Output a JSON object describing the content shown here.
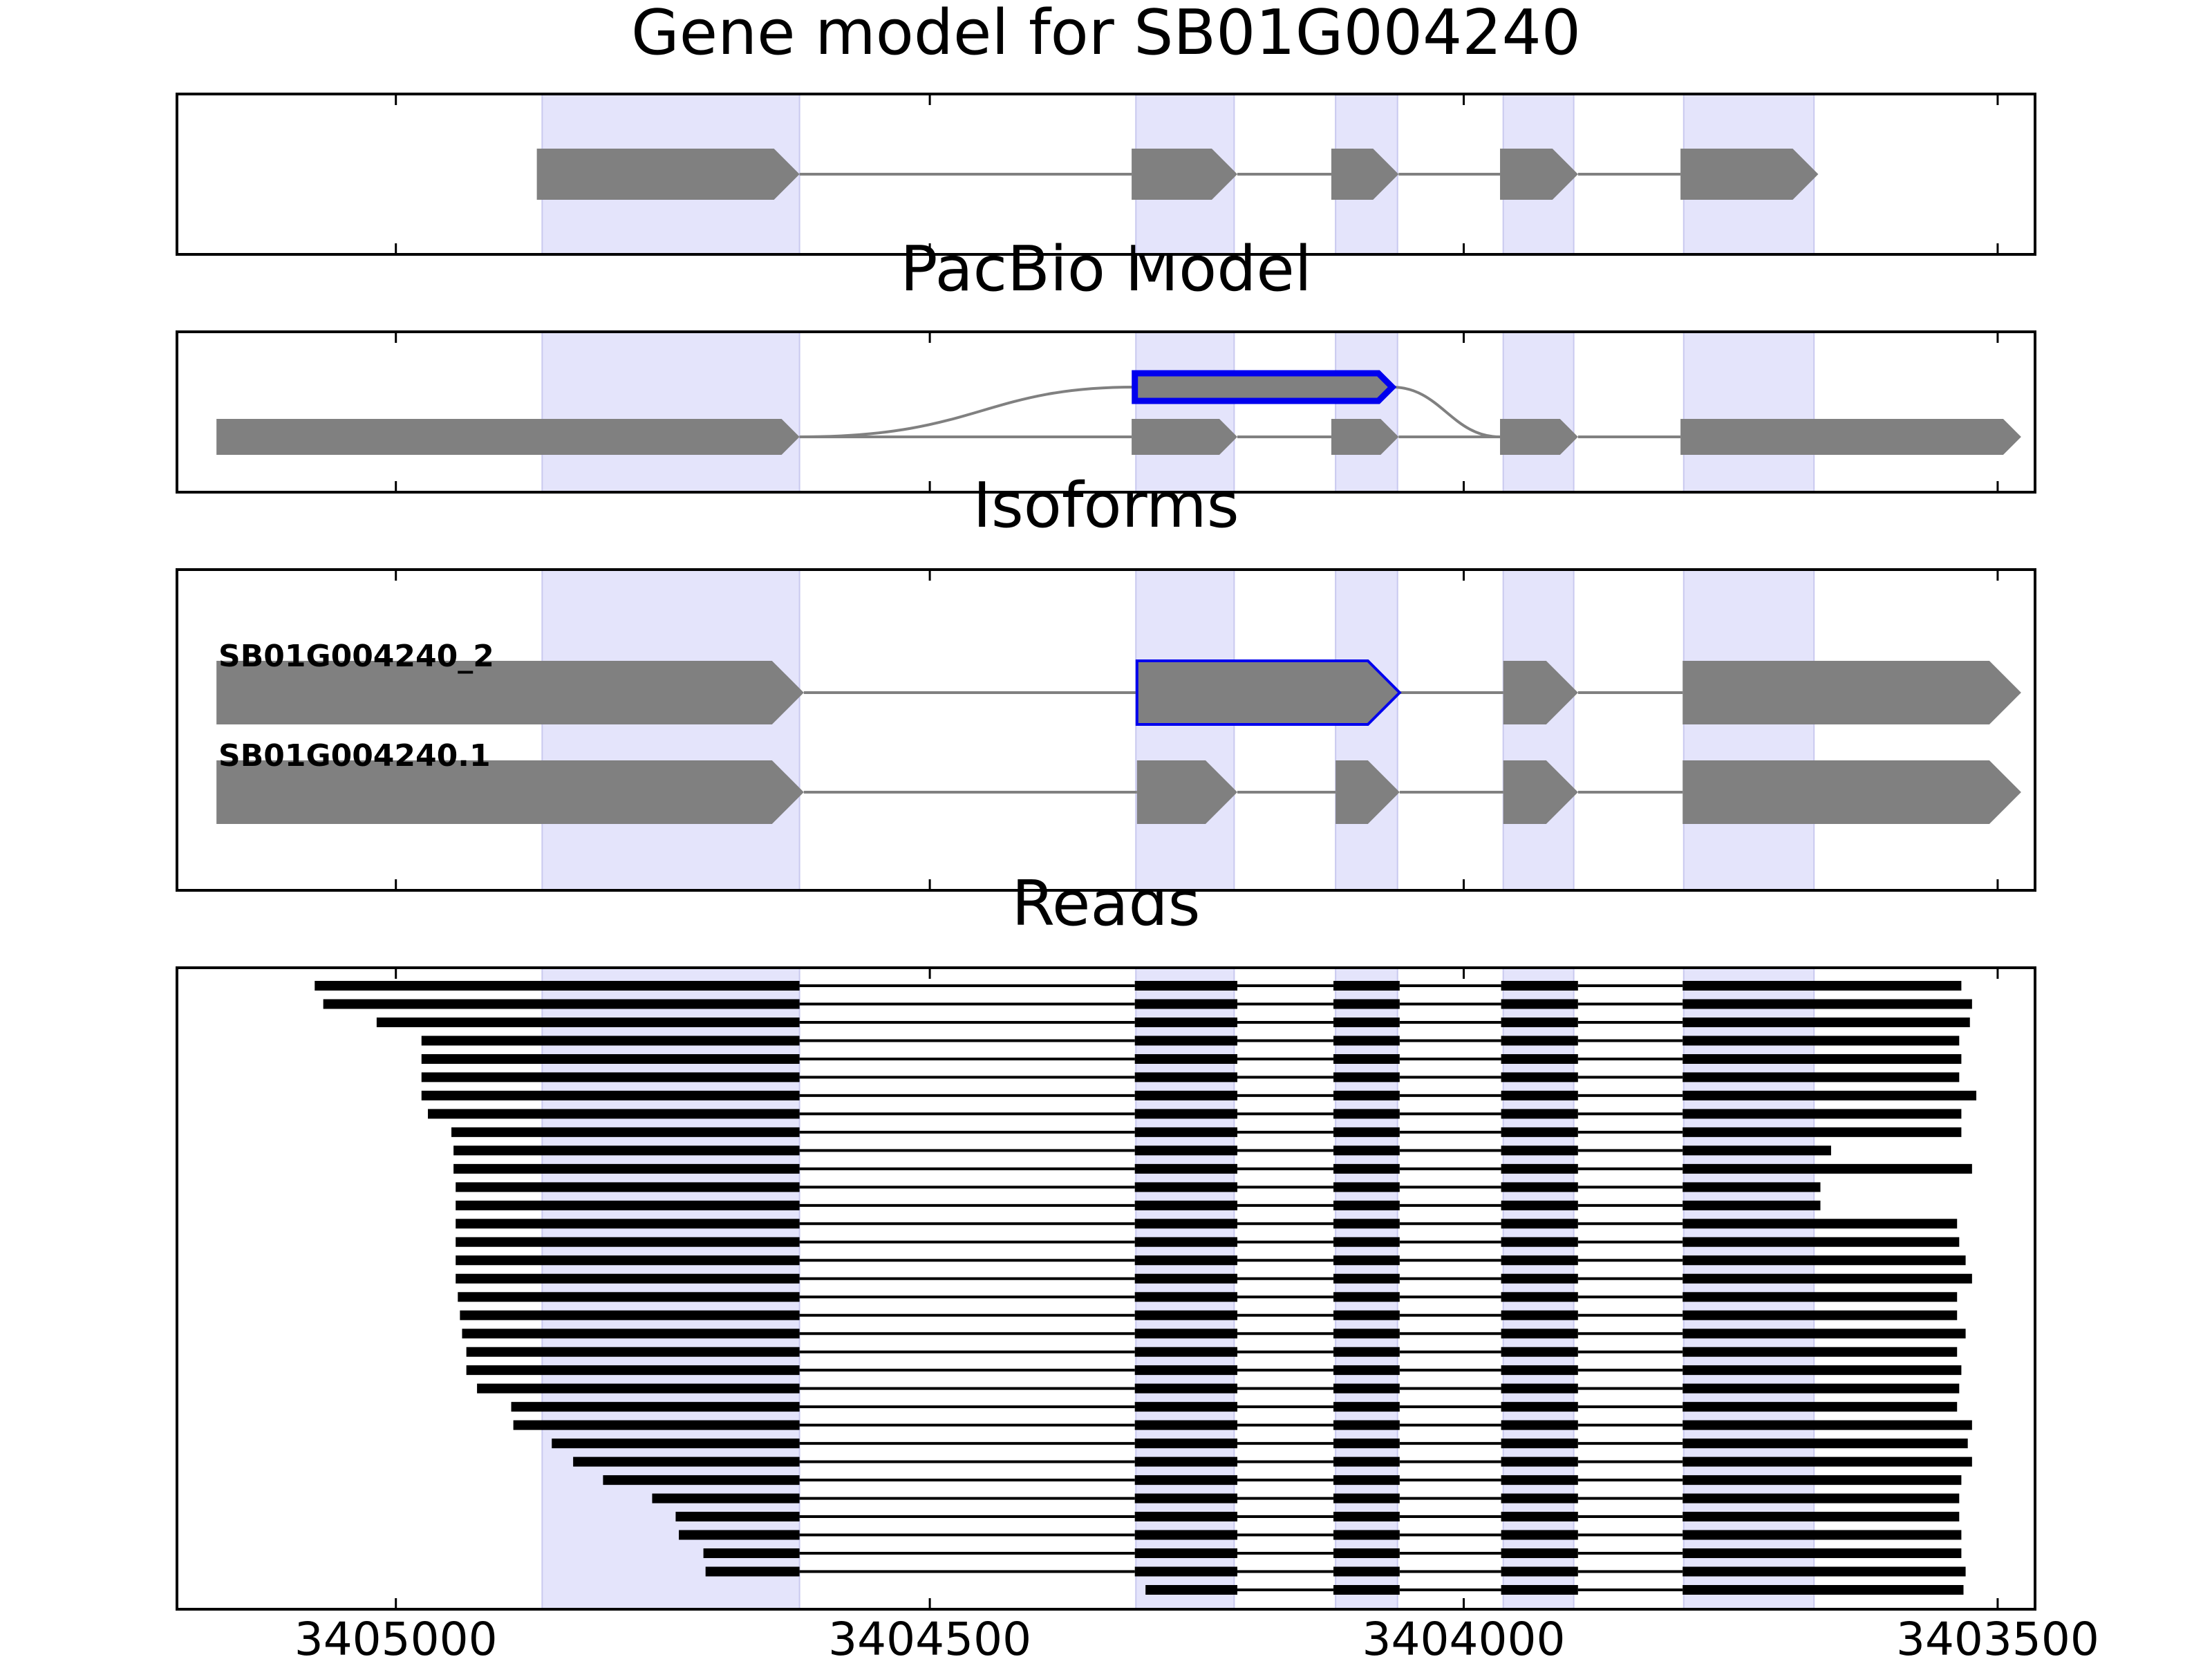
{
  "figure": {
    "domain_label": "Gene structure figure",
    "xaxis": {
      "min": 3405205,
      "max": 3403465,
      "ticks": [
        3405000,
        3404500,
        3404000,
        3403500
      ],
      "tick_labels": [
        "3405000",
        "3404500",
        "3404000",
        "3403500"
      ]
    },
    "highlight_color": "#e4e4fb",
    "highlight_regions": [
      [
        3404863,
        3404622
      ],
      [
        3404307,
        3404215
      ],
      [
        3404120,
        3404062
      ],
      [
        3403963,
        3403897
      ],
      [
        3403794,
        3403672
      ]
    ],
    "colors": {
      "exon": "#808080",
      "intron": "#808080",
      "selected": "#0000ee",
      "read": "#000000"
    }
  },
  "panels": {
    "gene_model": {
      "title": "Gene model for SB01G004240",
      "exons": [
        [
          3404868,
          3404622
        ],
        [
          3404311,
          3404212
        ],
        [
          3404124,
          3404061
        ],
        [
          3403966,
          3403893
        ],
        [
          3403797,
          3403668
        ]
      ]
    },
    "pacbio_model": {
      "title": "PacBio Model",
      "main_exons": [
        [
          3405168,
          3404622
        ],
        [
          3404311,
          3404212
        ],
        [
          3404124,
          3404061
        ],
        [
          3403966,
          3403893
        ],
        [
          3403797,
          3403478
        ]
      ],
      "alt_exon": [
        3404308,
        3404067
      ]
    },
    "isoforms": {
      "title": "Isoforms",
      "items": [
        {
          "name": "SB01G004240_2",
          "exons": [
            [
              3405168,
              3404618
            ],
            [
              3404306,
              3404060
            ],
            [
              3403963,
              3403893
            ],
            [
              3403795,
              3403478
            ]
          ],
          "selected_exon": 1
        },
        {
          "name": "SB01G004240.1",
          "exons": [
            [
              3405168,
              3404618
            ],
            [
              3404306,
              3404212
            ],
            [
              3404120,
              3404060
            ],
            [
              3403963,
              3403893
            ],
            [
              3403795,
              3403478
            ]
          ]
        }
      ]
    },
    "reads": {
      "title": "Reads",
      "junctions": [
        [
          3404622,
          3404308
        ],
        [
          3404212,
          3404122
        ],
        [
          3404060,
          3403965
        ],
        [
          3403893,
          3403795
        ]
      ],
      "reads": [
        [
          3405076,
          3403534
        ],
        [
          3405068,
          3403524
        ],
        [
          3405018,
          3403526
        ],
        [
          3404976,
          3403536
        ],
        [
          3404976,
          3403534
        ],
        [
          3404976,
          3403536
        ],
        [
          3404976,
          3403520
        ],
        [
          3404970,
          3403534
        ],
        [
          3404948,
          3403534
        ],
        [
          3404946,
          3403656
        ],
        [
          3404946,
          3403524
        ],
        [
          3404944,
          3403666
        ],
        [
          3404944,
          3403666
        ],
        [
          3404944,
          3403538
        ],
        [
          3404944,
          3403536
        ],
        [
          3404944,
          3403530
        ],
        [
          3404944,
          3403524
        ],
        [
          3404942,
          3403538
        ],
        [
          3404940,
          3403538
        ],
        [
          3404938,
          3403530
        ],
        [
          3404934,
          3403538
        ],
        [
          3404934,
          3403534
        ],
        [
          3404924,
          3403536
        ],
        [
          3404892,
          3403538
        ],
        [
          3404890,
          3403524
        ],
        [
          3404854,
          3403528
        ],
        [
          3404834,
          3403524
        ],
        [
          3404806,
          3403534
        ],
        [
          3404760,
          3403536
        ],
        [
          3404738,
          3403536
        ],
        [
          3404735,
          3403534
        ],
        [
          3404712,
          3403534
        ],
        [
          3404710,
          3403530
        ],
        [
          3404298,
          3403532
        ]
      ]
    }
  }
}
